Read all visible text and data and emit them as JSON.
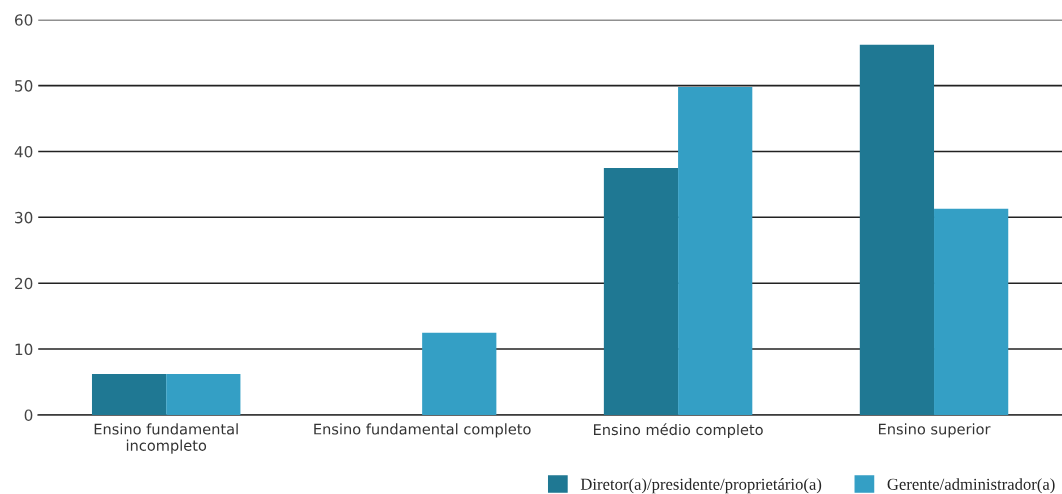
{
  "chart_data": {
    "type": "bar",
    "categories": [
      "Ensino fundamental\nincompleto",
      "Ensino fundamental completo",
      "Ensino médio completo",
      "Ensino superior"
    ],
    "series": [
      {
        "name": "Diretor(a)/presidente/proprietário(a)",
        "color": "#1f7893",
        "values": [
          6.2,
          0,
          37.5,
          56.2
        ]
      },
      {
        "name": "Gerente/administrador(a)",
        "color": "#349fc5",
        "values": [
          6.2,
          12.5,
          49.8,
          31.3
        ]
      }
    ],
    "ylim": [
      0,
      60
    ],
    "yticks": [
      0,
      10,
      20,
      30,
      40,
      50,
      60
    ],
    "grid": "y",
    "legend": "bottom right"
  }
}
